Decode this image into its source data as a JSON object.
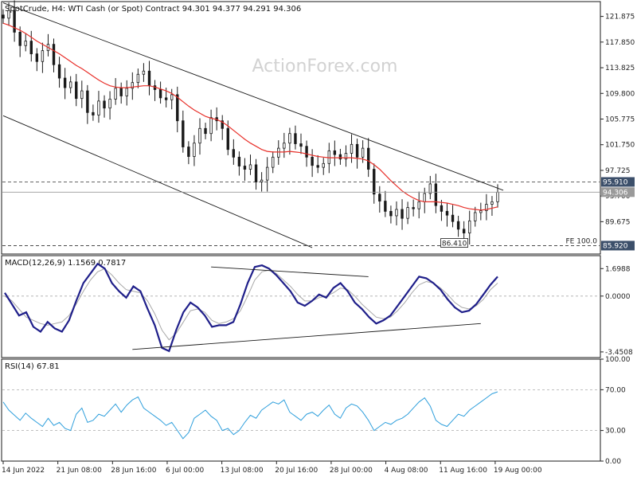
{
  "header": {
    "symbol_info": "SpotCrude, H4:  WTI Cash (or Spot) Contract  94.301 94.377 94.291 94.306",
    "watermark": "ActionForex.com"
  },
  "colors": {
    "price": "#1a1a1a",
    "moving_average": "#e8302a",
    "macd_line": "#1f1f8a",
    "macd_signal": "#a8a8a8",
    "rsi": "#2f9fdc",
    "grid_dash": "#888888",
    "axis_text": "#222222"
  },
  "chart_data": [
    {
      "type": "candlestick",
      "panel": "price",
      "title": "SpotCrude, H4:  WTI Cash (or Spot) Contract",
      "last_values": {
        "open": 94.301,
        "high": 94.377,
        "low": 94.291,
        "close": 94.306
      },
      "ylim": [
        84.6,
        124.2
      ],
      "yticks": [
        "121.875",
        "117.850",
        "113.825",
        "109.800",
        "105.775",
        "101.750",
        "97.725",
        "93.700",
        "89.675"
      ],
      "xticks": [
        "14 Jun 2022",
        "21 Jun 08:00",
        "28 Jun 16:00",
        "6 Jul 00:00",
        "13 Jul 08:00",
        "20 Jul 16:00",
        "28 Jul 00:00",
        "4 Aug 08:00",
        "11 Aug 16:00",
        "19 Aug 00:00"
      ],
      "series": [
        {
          "values": [
            121.6,
            122.8,
            119.4,
            117.3,
            118.0,
            116.0,
            114.8,
            116.5,
            117.5,
            114.3,
            112.2,
            110.7,
            111.6,
            109.0,
            110.2,
            106.8,
            106.4,
            108.6,
            107.5,
            108.9,
            110.6,
            109.4,
            110.6,
            111.5,
            112.8,
            113.3,
            111.0,
            110.4,
            109.1,
            108.8,
            109.6,
            105.5,
            101.4,
            99.9,
            102.0,
            104.3,
            103.5,
            106.0,
            105.5,
            104.3,
            101.0,
            99.8,
            98.4,
            97.9,
            98.6,
            95.9,
            96.2,
            98.2,
            99.8,
            101.2,
            102.0,
            103.5,
            101.9,
            101.5,
            99.8,
            98.5,
            98.2,
            98.8,
            100.8,
            100.2,
            99.5,
            100.4,
            101.8,
            99.8,
            101.2,
            97.9,
            94.0,
            92.9,
            91.3,
            90.6,
            91.6,
            90.2,
            91.9,
            91.7,
            92.8,
            94.1,
            95.6,
            92.2,
            91.3,
            90.7,
            89.7,
            88.5,
            87.9,
            89.8,
            91.1,
            91.4,
            92.4,
            92.8,
            94.3
          ]
        },
        {
          "values": [
            120.8,
            120.5,
            120.1,
            119.7,
            119.2,
            118.6,
            118.0,
            117.5,
            117.0,
            116.5,
            116.0,
            115.4,
            114.8,
            114.2,
            113.7,
            113.1,
            112.5,
            111.9,
            111.4,
            111.0,
            110.8,
            110.7,
            110.7,
            110.8,
            110.9,
            111.0,
            111.0,
            110.8,
            110.5,
            110.2,
            109.8,
            109.2,
            108.5,
            107.8,
            107.2,
            106.7,
            106.2,
            105.9,
            105.7,
            105.3,
            104.7,
            104.0,
            103.3,
            102.6,
            102.0,
            101.5,
            101.0,
            100.7,
            100.6,
            100.6,
            100.6,
            100.7,
            100.6,
            100.5,
            100.3,
            100.1,
            99.9,
            99.8,
            99.7,
            99.7,
            99.7,
            99.7,
            99.7,
            99.6,
            99.5,
            99.2,
            98.6,
            97.9,
            97.0,
            96.1,
            95.3,
            94.5,
            93.9,
            93.4,
            93.0,
            92.8,
            92.8,
            92.8,
            92.7,
            92.6,
            92.4,
            92.2,
            91.9,
            91.7,
            91.6,
            91.5,
            91.6,
            91.8,
            92.0
          ]
        }
      ],
      "horizontal_levels": [
        {
          "value": 95.91,
          "label": "95.910",
          "style": "dashed",
          "tag": "dark"
        },
        {
          "value": 94.306,
          "label": "94.306",
          "style": "solid",
          "tag": "gray"
        },
        {
          "value": 85.92,
          "label": "85.920",
          "style": "dashed",
          "tag": "dark",
          "note": "FE 100.0"
        }
      ],
      "price_labels": [
        {
          "label": "86.410",
          "value": 86.41,
          "bar_index": 81
        }
      ],
      "trendlines": [
        {
          "from": {
            "bar_index": 0,
            "value": 124.0
          },
          "to": {
            "bar_index": 89,
            "value": 94.6
          }
        },
        {
          "from": {
            "bar_index": 0,
            "value": 106.3
          },
          "to": {
            "bar_index": 55,
            "value": 85.6
          }
        }
      ]
    },
    {
      "type": "line",
      "panel": "macd",
      "label": "MACD(12,26,9) 1.1569 0.7817",
      "ylim": [
        -3.8,
        2.5
      ],
      "yticks": [
        "1.6988",
        "0.0000",
        "-3.4508"
      ],
      "series": [
        {
          "values": [
            0.2,
            -0.5,
            -1.2,
            -1.0,
            -1.9,
            -2.2,
            -1.6,
            -2.0,
            -2.2,
            -1.5,
            -0.3,
            0.8,
            1.4,
            2.0,
            1.7,
            0.8,
            0.3,
            -0.1,
            0.6,
            0.3,
            -0.8,
            -1.8,
            -3.2,
            -3.4,
            -2.1,
            -1.0,
            -0.4,
            -0.7,
            -1.2,
            -1.9,
            -1.8,
            -1.8,
            -1.6,
            -0.5,
            0.8,
            1.8,
            1.9,
            1.7,
            1.3,
            0.8,
            0.3,
            -0.4,
            -0.6,
            -0.3,
            0.1,
            -0.1,
            0.5,
            0.8,
            0.3,
            -0.4,
            -0.8,
            -1.3,
            -1.7,
            -1.5,
            -1.2,
            -0.6,
            0.0,
            0.6,
            1.2,
            1.1,
            0.8,
            0.4,
            -0.2,
            -0.7,
            -1.0,
            -0.9,
            -0.5,
            0.1,
            0.7,
            1.2
          ]
        },
        {
          "values": [
            0.0,
            -0.3,
            -0.8,
            -1.3,
            -1.5,
            -1.7,
            -1.8,
            -1.7,
            -1.6,
            -1.2,
            -0.5,
            0.3,
            1.0,
            1.5,
            1.7,
            1.3,
            0.8,
            0.4,
            0.3,
            0.2,
            -0.3,
            -1.1,
            -2.1,
            -2.7,
            -2.3,
            -1.6,
            -0.9,
            -0.8,
            -1.0,
            -1.5,
            -1.7,
            -1.6,
            -1.4,
            -0.9,
            0.0,
            1.0,
            1.5,
            1.6,
            1.4,
            1.0,
            0.6,
            0.1,
            -0.3,
            -0.3,
            -0.1,
            0.0,
            0.2,
            0.5,
            0.4,
            0.0,
            -0.5,
            -0.9,
            -1.3,
            -1.4,
            -1.3,
            -0.9,
            -0.4,
            0.2,
            0.7,
            0.9,
            0.8,
            0.5,
            0.1,
            -0.4,
            -0.7,
            -0.8,
            -0.6,
            -0.2,
            0.4,
            0.8
          ]
        }
      ],
      "trendlines": [
        {
          "from": {
            "bar_index": 37,
            "value": 1.8
          },
          "to": {
            "bar_index": 65,
            "value": 1.2
          }
        },
        {
          "from": {
            "bar_index": 23,
            "value": -3.3
          },
          "to": {
            "bar_index": 85,
            "value": -1.7
          }
        }
      ]
    },
    {
      "type": "line",
      "panel": "rsi",
      "label": "RSI(14) 67.81",
      "ylim": [
        0,
        100
      ],
      "yticks": [
        "100.00",
        "70.00",
        "30.00",
        "0.00"
      ],
      "levels": [
        70,
        30
      ],
      "series": [
        {
          "values": [
            58,
            50,
            45,
            40,
            47,
            42,
            38,
            34,
            42,
            35,
            38,
            32,
            30,
            46,
            52,
            38,
            40,
            46,
            44,
            50,
            56,
            48,
            55,
            60,
            63,
            52,
            48,
            44,
            40,
            35,
            38,
            30,
            22,
            28,
            42,
            46,
            50,
            44,
            40,
            30,
            32,
            26,
            30,
            38,
            45,
            42,
            50,
            54,
            58,
            56,
            60,
            48,
            44,
            40,
            46,
            48,
            44,
            50,
            55,
            46,
            42,
            52,
            56,
            54,
            48,
            40,
            30,
            34,
            38,
            36,
            40,
            42,
            46,
            52,
            58,
            62,
            54,
            40,
            36,
            34,
            40,
            46,
            44,
            50,
            54,
            58,
            62,
            66,
            68
          ]
        }
      ]
    }
  ]
}
